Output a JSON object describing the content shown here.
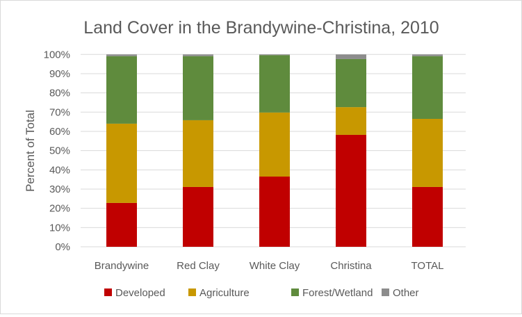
{
  "chart_data": {
    "type": "bar",
    "stacked": true,
    "title": "Land Cover in the Brandywine-Christina, 2010",
    "xlabel": "",
    "ylabel": "Percent of Total",
    "ylim": [
      0,
      100
    ],
    "yticks": [
      "0%",
      "10%",
      "20%",
      "30%",
      "40%",
      "50%",
      "60%",
      "70%",
      "80%",
      "90%",
      "100%"
    ],
    "grid": true,
    "legend_position": "bottom",
    "categories": [
      "Brandywine",
      "Red Clay",
      "White Clay",
      "Christina",
      "TOTAL"
    ],
    "series": [
      {
        "name": "Developed",
        "color": "#c00000",
        "values": [
          22.8,
          31.1,
          36.5,
          58.2,
          31.1
        ]
      },
      {
        "name": "Agriculture",
        "color": "#c89800",
        "values": [
          41.2,
          34.7,
          33.3,
          14.4,
          35.4
        ]
      },
      {
        "name": "Forest/Wetland",
        "color": "#5f8b3d",
        "values": [
          35.1,
          33.3,
          29.8,
          25.0,
          32.6
        ]
      },
      {
        "name": "Other",
        "color": "#8c8c8c",
        "values": [
          0.9,
          0.9,
          0.4,
          2.4,
          0.9
        ]
      }
    ]
  }
}
